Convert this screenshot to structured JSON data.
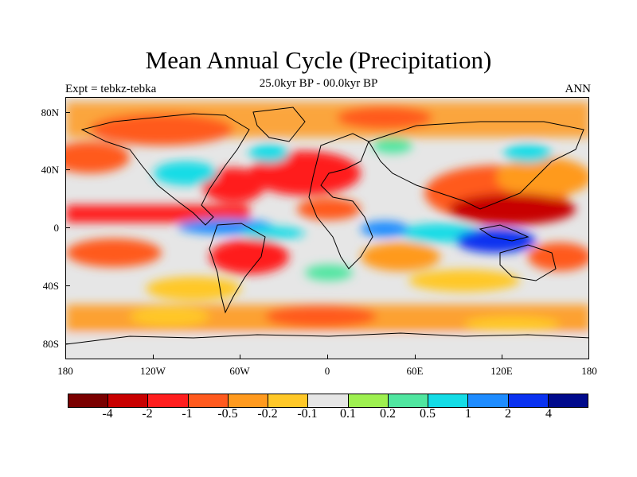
{
  "title": "Mean Annual Cycle (Precipitation)",
  "subtitle": "25.0kyr BP - 00.0kyr BP",
  "left_label": "Expt = tebkz-tebka",
  "right_label": "ANN",
  "latitude_labels": [
    "80N",
    "40N",
    "0",
    "40S",
    "80S"
  ],
  "longitude_labels": [
    "180",
    "120W",
    "60W",
    "0",
    "60E",
    "120E",
    "180"
  ],
  "colorbar": {
    "colors": [
      "#7a0000",
      "#c80000",
      "#ff1e1e",
      "#ff5a1e",
      "#ff9a1e",
      "#ffc828",
      "#e6e6e6",
      "#9ef050",
      "#50e6a0",
      "#14dce6",
      "#1e8cff",
      "#0a32f0",
      "#000a8c"
    ],
    "labels": [
      "-4",
      "-2",
      "-1",
      "-0.5",
      "-0.2",
      "-0.1",
      "0.1",
      "0.2",
      "0.5",
      "1",
      "2",
      "4"
    ]
  }
}
